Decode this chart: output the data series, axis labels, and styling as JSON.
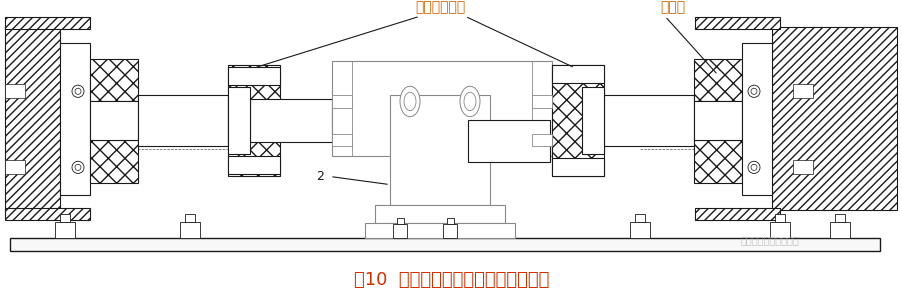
{
  "bg_color": "#ffffff",
  "fig_width": 9.03,
  "fig_height": 3.02,
  "dpi": 100,
  "caption": "图10  轴式不带底座扭矩传感器结构图",
  "caption_color": "#cc3300",
  "caption_fontsize": 13,
  "label1": "单膜片联轴器",
  "label1_color": "#cc6600",
  "label1_fontsize": 10,
  "label2": "轴承座",
  "label2_color": "#cc6600",
  "label2_fontsize": 10,
  "watermark": "智能紧固件及紧固工具",
  "watermark_color": "#aaaaaa",
  "watermark_fontsize": 7,
  "num2": "2",
  "black": "#1a1a1a",
  "gray_line": "#666666",
  "hatch_color": "#888888"
}
